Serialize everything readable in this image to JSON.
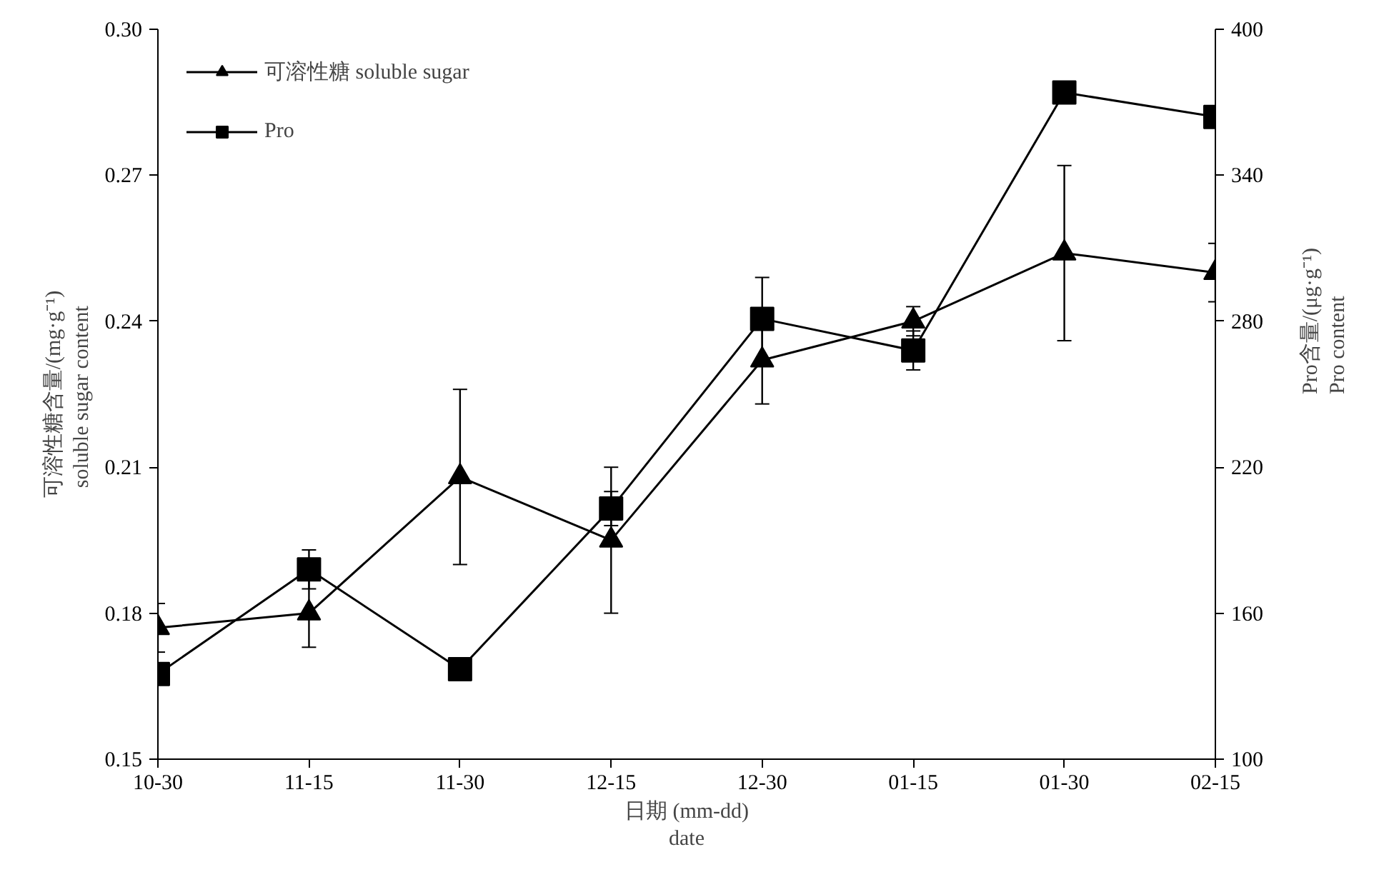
{
  "chart_data": {
    "type": "line",
    "categories": [
      "10-30",
      "11-15",
      "11-30",
      "12-15",
      "12-30",
      "01-15",
      "01-30",
      "02-15"
    ],
    "xlabel": "日期 (mm-dd)\ndate",
    "ylabel": "可溶性糖含量/(mg·g⁻¹)\nsoluble  sugar content",
    "y2label": "Pro含量/(μg·g⁻¹)\nPro  content",
    "ylim": [
      0.15,
      0.3
    ],
    "yticks": [
      0.15,
      0.18,
      0.21,
      0.24,
      0.27,
      {
        "value": 0.3,
        "label": "0.30"
      }
    ],
    "y2lim": [
      100,
      400
    ],
    "y2ticks": [
      100,
      160,
      220,
      280,
      340,
      400
    ],
    "legend": "top left",
    "grid": false,
    "line_style": "solid",
    "series": [
      {
        "name": "可溶性糖 soluble sugar",
        "color": "#000000",
        "marker": "triangle",
        "values": [
          0.177,
          0.18,
          0.208,
          0.195,
          0.232,
          0.24,
          0.254,
          0.25
        ],
        "errors": [
          0.005,
          0.007,
          0.018,
          0.015,
          0.009,
          0.003,
          0.018,
          0.006
        ]
      },
      {
        "name": "Pro",
        "color": "#000000",
        "marker": "square",
        "axis": "y2",
        "values": [
          135,
          178,
          137,
          203,
          281,
          268,
          374,
          364
        ],
        "errors": [
          3,
          8,
          null,
          7,
          17,
          8,
          null,
          null
        ]
      }
    ]
  }
}
